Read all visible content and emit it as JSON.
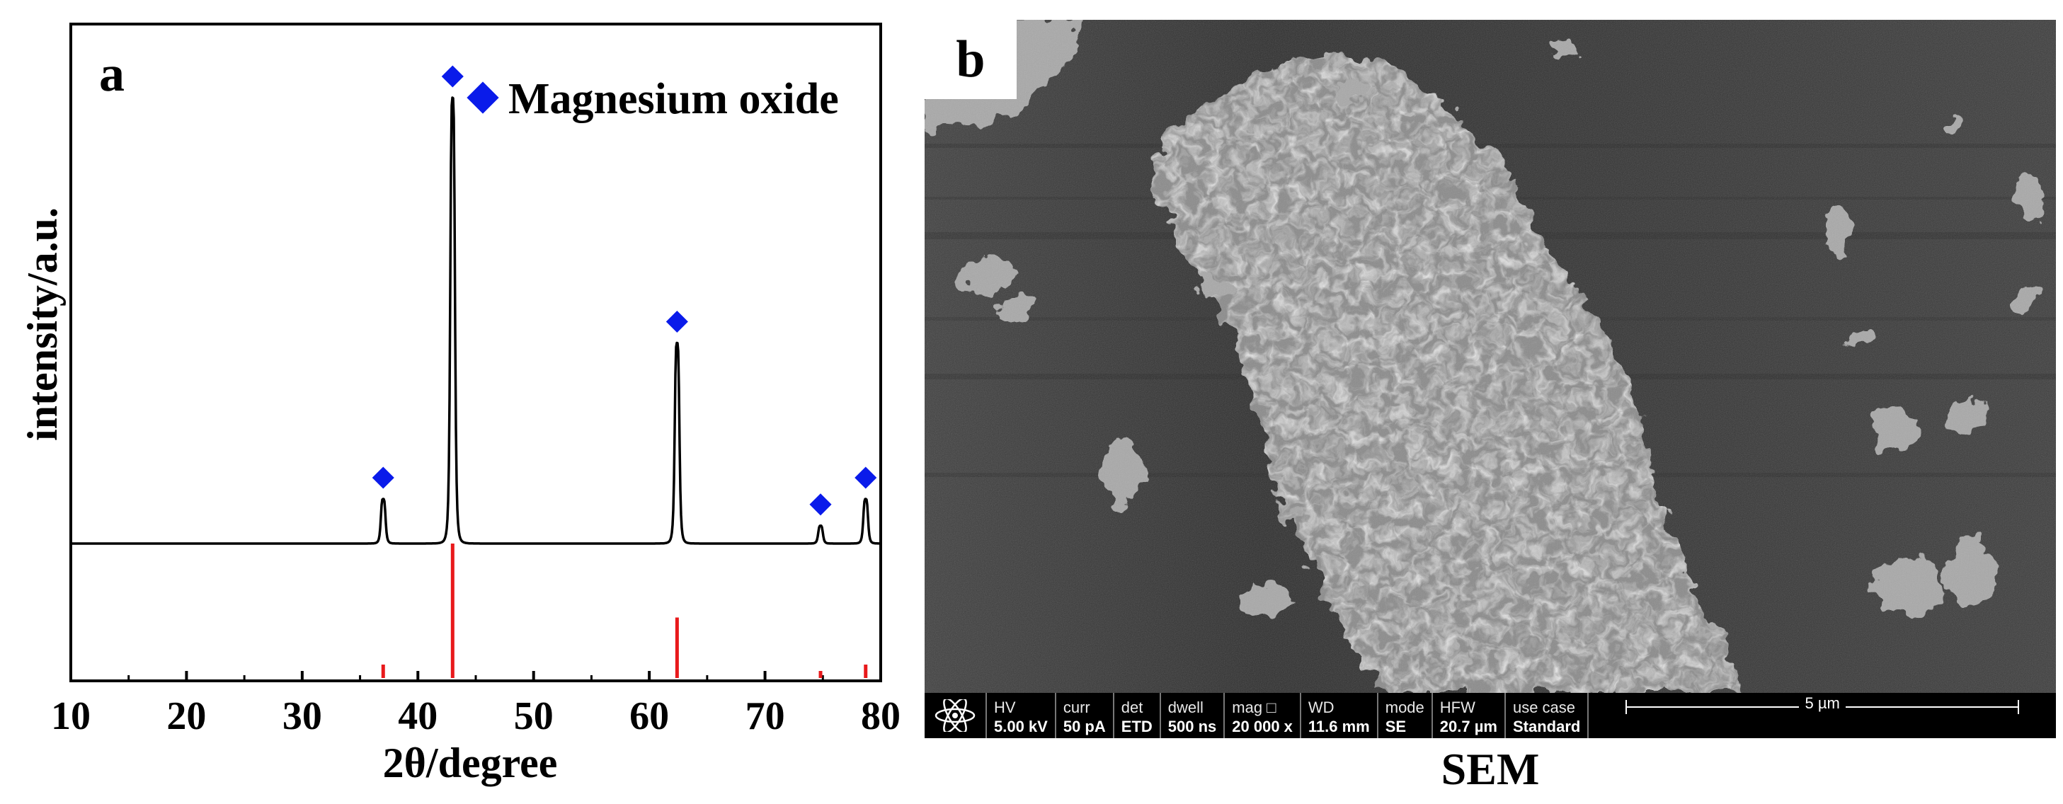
{
  "panel_a": {
    "letter": "a",
    "chart_data": {
      "type": "line",
      "title": "",
      "xlabel": "2θ/degree",
      "ylabel": "intensity/a.u.",
      "xlim": [
        10,
        80
      ],
      "x_ticks": [
        10,
        20,
        30,
        40,
        50,
        60,
        70,
        80
      ],
      "legend": {
        "marker": "diamond",
        "label": "Magnesium oxide",
        "placement": "top-right"
      },
      "series": [
        {
          "peaks": [
            {
              "x": 37.0,
              "height": 0.1
            },
            {
              "x": 43.0,
              "height": 1.0
            },
            {
              "x": 62.4,
              "height": 0.45
            },
            {
              "x": 74.8,
              "height": 0.04
            },
            {
              "x": 78.7,
              "height": 0.1
            }
          ],
          "color": "#000000"
        }
      ],
      "reference_lines": {
        "color": "#e8191b",
        "lines": [
          {
            "x": 37.0,
            "intensity": 0.1
          },
          {
            "x": 43.0,
            "intensity": 1.0
          },
          {
            "x": 62.4,
            "intensity": 0.45
          },
          {
            "x": 74.8,
            "intensity": 0.04
          },
          {
            "x": 78.7,
            "intensity": 0.1
          }
        ]
      },
      "marker_color": "#0a1bea"
    }
  },
  "panel_b": {
    "letter": "b",
    "caption": "SEM",
    "info_bar": {
      "cells": [
        {
          "label": "HV",
          "value": "5.00 kV"
        },
        {
          "label": "curr",
          "value": "50 pA"
        },
        {
          "label": "det",
          "value": "ETD"
        },
        {
          "label": "dwell",
          "value": "500 ns"
        },
        {
          "label": "mag □",
          "value": "20 000 x"
        },
        {
          "label": "WD",
          "value": "11.6 mm"
        },
        {
          "label": "mode",
          "value": "SE"
        },
        {
          "label": "HFW",
          "value": "20.7 µm"
        },
        {
          "label": "use case",
          "value": "Standard"
        }
      ],
      "scale_bar": "5 µm"
    }
  }
}
